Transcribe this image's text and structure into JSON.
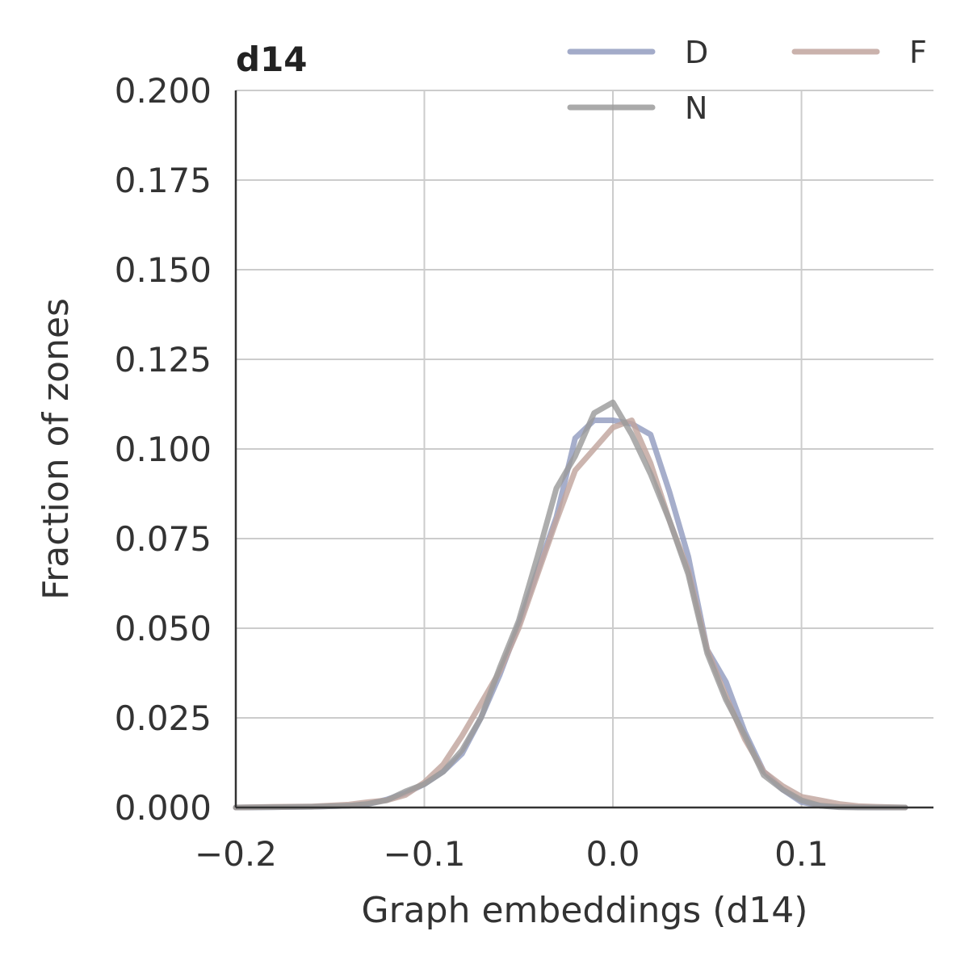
{
  "chart_data": {
    "type": "line",
    "title": "d14",
    "xlabel": "Graph embeddings (d14)",
    "ylabel": "Fraction of zones",
    "xlim": [
      -0.2,
      0.17
    ],
    "ylim": [
      0,
      0.2
    ],
    "xticks": [
      -0.2,
      -0.1,
      0.0,
      0.1
    ],
    "xtick_labels": [
      "−0.2",
      "−0.1",
      "0.0",
      "0.1"
    ],
    "yticks": [
      0,
      0.025,
      0.05,
      0.075,
      0.1,
      0.125,
      0.15,
      0.175,
      0.2
    ],
    "ytick_labels": [
      "0.000",
      "0.025",
      "0.050",
      "0.075",
      "0.100",
      "0.125",
      "0.150",
      "0.175",
      "0.200"
    ],
    "grid": true,
    "legend_position": "top-right",
    "series": [
      {
        "name": "D",
        "color": "#939cc0",
        "x": [
          -0.2,
          -0.18,
          -0.16,
          -0.14,
          -0.13,
          -0.12,
          -0.11,
          -0.1,
          -0.09,
          -0.08,
          -0.07,
          -0.06,
          -0.05,
          -0.04,
          -0.03,
          -0.02,
          -0.01,
          0.0,
          0.01,
          0.02,
          0.03,
          0.04,
          0.05,
          0.06,
          0.07,
          0.08,
          0.09,
          0.1,
          0.11,
          0.12,
          0.13,
          0.14,
          0.155
        ],
        "y": [
          0.0,
          0.0001,
          0.0002,
          0.0005,
          0.001,
          0.0022,
          0.004,
          0.0065,
          0.01,
          0.015,
          0.025,
          0.037,
          0.051,
          0.066,
          0.081,
          0.103,
          0.108,
          0.108,
          0.107,
          0.104,
          0.088,
          0.07,
          0.044,
          0.035,
          0.021,
          0.01,
          0.005,
          0.0015,
          0.0005,
          0.0002,
          0.0001,
          0.0,
          0.0
        ]
      },
      {
        "name": "F",
        "color": "#c1a59e",
        "x": [
          -0.2,
          -0.18,
          -0.16,
          -0.14,
          -0.13,
          -0.12,
          -0.11,
          -0.1,
          -0.09,
          -0.08,
          -0.07,
          -0.06,
          -0.05,
          -0.04,
          -0.03,
          -0.02,
          -0.01,
          0.0,
          0.01,
          0.02,
          0.03,
          0.04,
          0.05,
          0.06,
          0.07,
          0.08,
          0.09,
          0.1,
          0.11,
          0.12,
          0.13,
          0.14,
          0.155
        ],
        "y": [
          0.0,
          0.0002,
          0.0003,
          0.0008,
          0.0015,
          0.002,
          0.0035,
          0.007,
          0.012,
          0.02,
          0.029,
          0.038,
          0.05,
          0.065,
          0.08,
          0.094,
          0.1,
          0.106,
          0.108,
          0.096,
          0.08,
          0.066,
          0.044,
          0.031,
          0.019,
          0.01,
          0.006,
          0.003,
          0.002,
          0.001,
          0.0004,
          0.0002,
          0.0
        ]
      },
      {
        "name": "N",
        "color": "#9b9b9b",
        "x": [
          -0.2,
          -0.18,
          -0.16,
          -0.14,
          -0.13,
          -0.12,
          -0.11,
          -0.1,
          -0.09,
          -0.08,
          -0.07,
          -0.06,
          -0.05,
          -0.04,
          -0.03,
          -0.02,
          -0.01,
          0.0,
          0.01,
          0.02,
          0.03,
          0.04,
          0.05,
          0.06,
          0.07,
          0.08,
          0.09,
          0.1,
          0.11,
          0.12,
          0.13,
          0.14,
          0.155
        ],
        "y": [
          0.0,
          0.0001,
          0.0002,
          0.0005,
          0.001,
          0.002,
          0.0045,
          0.0065,
          0.01,
          0.016,
          0.025,
          0.039,
          0.052,
          0.07,
          0.089,
          0.098,
          0.11,
          0.113,
          0.104,
          0.093,
          0.08,
          0.065,
          0.043,
          0.03,
          0.02,
          0.009,
          0.005,
          0.002,
          0.0005,
          0.0001,
          0.0,
          0.0,
          0.0
        ]
      }
    ],
    "legend": [
      {
        "name": "D",
        "color": "#939cc0"
      },
      {
        "name": "F",
        "color": "#c1a59e"
      },
      {
        "name": "N",
        "color": "#9b9b9b"
      }
    ]
  }
}
